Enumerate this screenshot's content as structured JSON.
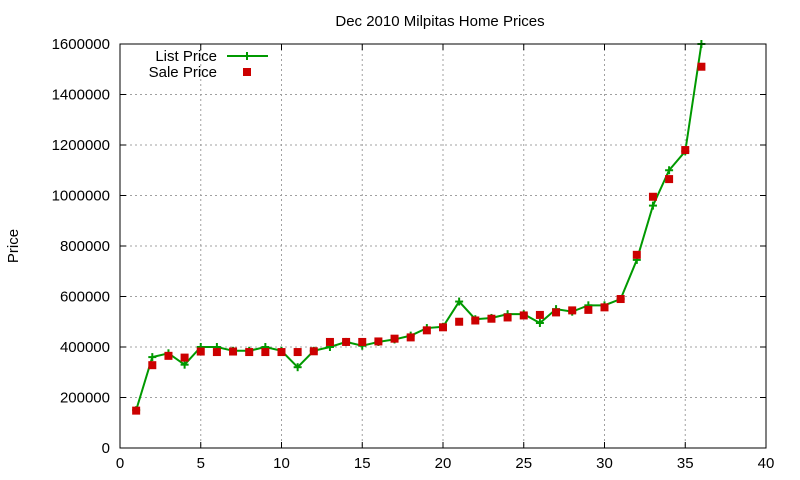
{
  "chart_data": {
    "type": "line",
    "title": "Dec 2010 Milpitas Home Prices",
    "xlabel": "",
    "ylabel": "Price",
    "xlim": [
      0,
      40
    ],
    "ylim": [
      0,
      1600000
    ],
    "xticks": [
      0,
      5,
      10,
      15,
      20,
      25,
      30,
      35,
      40
    ],
    "yticks": [
      0,
      200000,
      400000,
      600000,
      800000,
      1000000,
      1200000,
      1400000,
      1600000
    ],
    "grid": true,
    "legend_position": "top-left",
    "series": [
      {
        "name": "List Price",
        "style": "lines with plus markers",
        "color": "#009900",
        "x": [
          1,
          2,
          3,
          4,
          5,
          6,
          7,
          8,
          9,
          10,
          11,
          12,
          13,
          14,
          15,
          16,
          17,
          18,
          19,
          20,
          21,
          22,
          23,
          24,
          25,
          26,
          27,
          28,
          29,
          30,
          31,
          32,
          33,
          34,
          35,
          36
        ],
        "values": [
          150000,
          360000,
          375000,
          330000,
          400000,
          400000,
          385000,
          385000,
          400000,
          385000,
          320000,
          385000,
          400000,
          420000,
          405000,
          420000,
          430000,
          445000,
          475000,
          480000,
          580000,
          510000,
          515000,
          530000,
          530000,
          495000,
          550000,
          540000,
          565000,
          565000,
          590000,
          745000,
          960000,
          1100000,
          1175000,
          1600000
        ]
      },
      {
        "name": "Sale Price",
        "style": "square markers",
        "color": "#cc0000",
        "x": [
          1,
          2,
          3,
          4,
          5,
          6,
          7,
          8,
          9,
          10,
          11,
          12,
          13,
          14,
          15,
          16,
          17,
          18,
          19,
          20,
          21,
          22,
          23,
          24,
          25,
          26,
          27,
          28,
          29,
          30,
          31,
          32,
          33,
          34,
          35,
          36
        ],
        "values": [
          148000,
          328000,
          365000,
          358000,
          382000,
          380000,
          382000,
          380000,
          380000,
          380000,
          380000,
          383000,
          420000,
          420000,
          420000,
          422000,
          433000,
          438000,
          466000,
          478000,
          500000,
          505000,
          512000,
          517000,
          525000,
          527000,
          537000,
          545000,
          547000,
          557000,
          590000,
          765000,
          995000,
          1065000,
          1180000,
          1510000
        ]
      }
    ]
  }
}
